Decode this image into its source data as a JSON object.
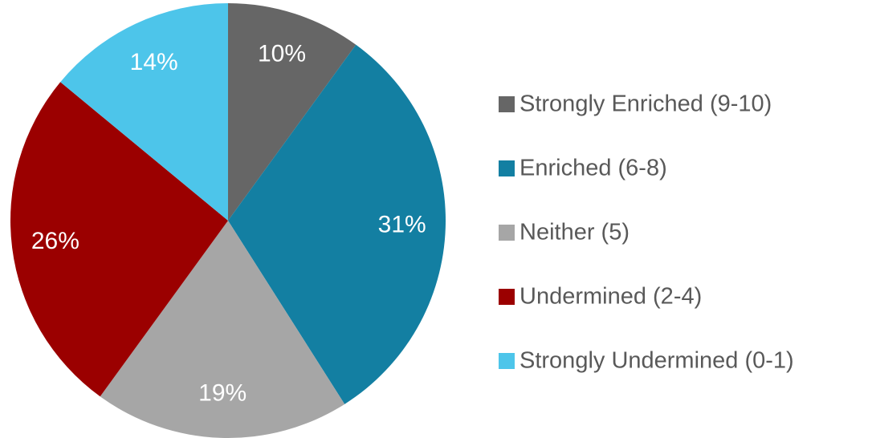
{
  "chart_data": {
    "type": "pie",
    "categories": [
      "Strongly Enriched (9-10)",
      "Enriched (6-8)",
      "Neither (5)",
      "Undermined (2-4)",
      "Strongly Undermined (0-1)"
    ],
    "values": [
      10,
      31,
      19,
      26,
      14
    ],
    "value_labels": [
      "10%",
      "31%",
      "19%",
      "26%",
      "14%"
    ],
    "colors": [
      "#666666",
      "#137fa2",
      "#a6a6a6",
      "#9b0000",
      "#4dc5ea"
    ],
    "legend": "right"
  }
}
